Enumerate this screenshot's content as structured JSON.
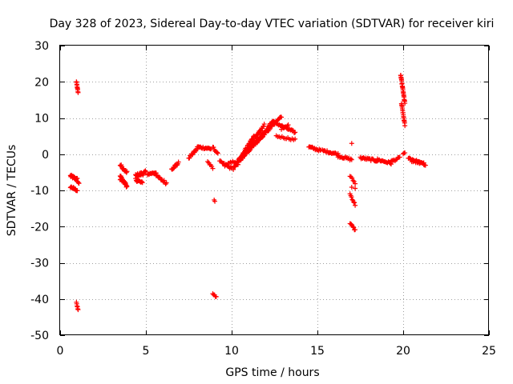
{
  "chart_data": {
    "type": "scatter",
    "title": "Day 328 of 2023, Sidereal Day-to-day VTEC variation (SDTVAR) for receiver kiri",
    "xlabel": "GPS time / hours",
    "ylabel": "SDTVAR / TECUs",
    "xlim": [
      0,
      25
    ],
    "ylim": [
      -50,
      30
    ],
    "xticks": [
      0,
      5,
      10,
      15,
      20,
      25
    ],
    "yticks": [
      -50,
      -40,
      -30,
      -20,
      -10,
      0,
      10,
      20,
      30
    ],
    "grid": true,
    "marker": "+",
    "color": "#ff0000",
    "segments": [
      {
        "x": [
          0.6,
          1.0
        ],
        "y": [
          -6,
          -7
        ],
        "n": 20,
        "w": 0.8
      },
      {
        "x": [
          0.6,
          1.0
        ],
        "y": [
          -9,
          -10
        ],
        "n": 15,
        "w": 0.6
      },
      {
        "x": [
          0.95,
          1.05
        ],
        "y": [
          20,
          17
        ],
        "n": 10,
        "w": 0.4
      },
      {
        "x": [
          0.95,
          1.05
        ],
        "y": [
          -41,
          -43
        ],
        "n": 6,
        "w": 0.3
      },
      {
        "x": [
          1.0,
          1.1
        ],
        "y": [
          -7.5,
          -8
        ],
        "n": 4,
        "w": 0.3
      },
      {
        "x": [
          3.5,
          3.9
        ],
        "y": [
          -3,
          -5
        ],
        "n": 14,
        "w": 0.8
      },
      {
        "x": [
          3.5,
          3.9
        ],
        "y": [
          -6,
          -9
        ],
        "n": 20,
        "w": 0.8
      },
      {
        "x": [
          3.5,
          3.8
        ],
        "y": [
          -7,
          -8
        ],
        "n": 10,
        "w": 0.6
      },
      {
        "x": [
          4.4,
          5.0
        ],
        "y": [
          -6,
          -5
        ],
        "n": 22,
        "w": 1.0
      },
      {
        "x": [
          4.4,
          4.8
        ],
        "y": [
          -7,
          -8
        ],
        "n": 12,
        "w": 0.8
      },
      {
        "x": [
          5.1,
          5.6
        ],
        "y": [
          -5.5,
          -5
        ],
        "n": 12,
        "w": 0.6
      },
      {
        "x": [
          5.6,
          6.2
        ],
        "y": [
          -6,
          -8
        ],
        "n": 14,
        "w": 0.8
      },
      {
        "x": [
          6.5,
          6.9
        ],
        "y": [
          -4,
          -2.5
        ],
        "n": 12,
        "w": 0.8
      },
      {
        "x": [
          7.5,
          8.0
        ],
        "y": [
          -1,
          1.5
        ],
        "n": 14,
        "w": 0.6
      },
      {
        "x": [
          8.0,
          8.8
        ],
        "y": [
          2,
          1.5
        ],
        "n": 18,
        "w": 0.6
      },
      {
        "x": [
          8.6,
          8.9
        ],
        "y": [
          -2,
          -4
        ],
        "n": 6,
        "w": 0.5
      },
      {
        "x": [
          8.9,
          9.2
        ],
        "y": [
          2,
          0
        ],
        "n": 8,
        "w": 0.5
      },
      {
        "x": [
          8.98,
          9.02
        ],
        "y": [
          -12.5,
          -13
        ],
        "n": 2,
        "w": 0.3
      },
      {
        "x": [
          8.9,
          9.1
        ],
        "y": [
          -38.5,
          -39.5
        ],
        "n": 5,
        "w": 0.3
      },
      {
        "x": [
          9.3,
          10.0
        ],
        "y": [
          -2,
          -4
        ],
        "n": 14,
        "w": 0.6
      },
      {
        "x": [
          9.6,
          10.2
        ],
        "y": [
          -3,
          -2
        ],
        "n": 10,
        "w": 0.6
      },
      {
        "x": [
          10.1,
          11.3
        ],
        "y": [
          -4,
          5
        ],
        "n": 40,
        "w": 0.8
      },
      {
        "x": [
          10.3,
          11.9
        ],
        "y": [
          -3,
          8
        ],
        "n": 45,
        "w": 0.8
      },
      {
        "x": [
          10.6,
          12.4
        ],
        "y": [
          -1,
          9
        ],
        "n": 45,
        "w": 0.8
      },
      {
        "x": [
          11.0,
          12.9
        ],
        "y": [
          1,
          10.5
        ],
        "n": 40,
        "w": 0.6
      },
      {
        "x": [
          12.4,
          13.7
        ],
        "y": [
          9,
          6
        ],
        "n": 25,
        "w": 0.6
      },
      {
        "x": [
          12.6,
          13.7
        ],
        "y": [
          5,
          4
        ],
        "n": 14,
        "w": 0.5
      },
      {
        "x": [
          12.9,
          13.3
        ],
        "y": [
          7,
          8
        ],
        "n": 8,
        "w": 0.5
      },
      {
        "x": [
          14.5,
          15.2
        ],
        "y": [
          2,
          1
        ],
        "n": 16,
        "w": 0.6
      },
      {
        "x": [
          15.3,
          16.2
        ],
        "y": [
          1,
          0
        ],
        "n": 18,
        "w": 0.6
      },
      {
        "x": [
          16.2,
          17.0
        ],
        "y": [
          -0.5,
          -1.5
        ],
        "n": 16,
        "w": 0.6
      },
      {
        "x": [
          16.95,
          17.05
        ],
        "y": [
          3,
          3
        ],
        "n": 1,
        "w": 0.2
      },
      {
        "x": [
          16.9,
          17.2
        ],
        "y": [
          -6,
          -8
        ],
        "n": 6,
        "w": 0.5
      },
      {
        "x": [
          16.9,
          17.2
        ],
        "y": [
          -11,
          -14
        ],
        "n": 8,
        "w": 0.5
      },
      {
        "x": [
          16.9,
          17.2
        ],
        "y": [
          -19,
          -21
        ],
        "n": 8,
        "w": 0.5
      },
      {
        "x": [
          17.0,
          17.2
        ],
        "y": [
          -9,
          -9.5
        ],
        "n": 2,
        "w": 0.3
      },
      {
        "x": [
          17.5,
          18.5
        ],
        "y": [
          -1,
          -1.8
        ],
        "n": 22,
        "w": 0.6
      },
      {
        "x": [
          18.5,
          19.3
        ],
        "y": [
          -1.5,
          -2.5
        ],
        "n": 16,
        "w": 0.6
      },
      {
        "x": [
          19.3,
          19.8
        ],
        "y": [
          -2,
          -1
        ],
        "n": 10,
        "w": 0.6
      },
      {
        "x": [
          19.85,
          20.1
        ],
        "y": [
          22,
          14
        ],
        "n": 25,
        "w": 0.6
      },
      {
        "x": [
          19.9,
          20.1
        ],
        "y": [
          14,
          8
        ],
        "n": 16,
        "w": 0.5
      },
      {
        "x": [
          20.0,
          20.1
        ],
        "y": [
          0,
          0.5
        ],
        "n": 3,
        "w": 0.3
      },
      {
        "x": [
          20.3,
          21.3
        ],
        "y": [
          -1,
          -3
        ],
        "n": 22,
        "w": 0.6
      },
      {
        "x": [
          20.5,
          21.2
        ],
        "y": [
          -2,
          -2.5
        ],
        "n": 10,
        "w": 0.5
      }
    ]
  }
}
